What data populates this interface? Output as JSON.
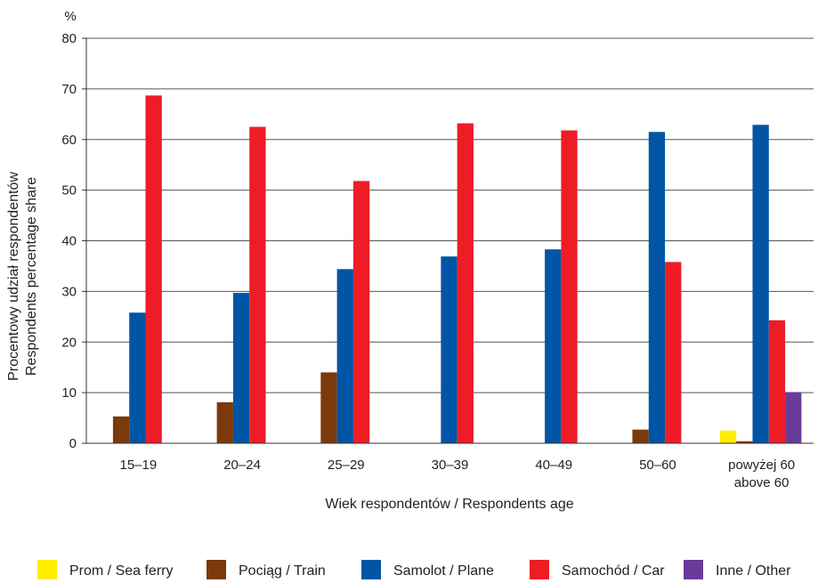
{
  "chart_data": {
    "type": "bar",
    "y_unit": "%",
    "ylabel_lines": [
      "Procentowy udział respondentów",
      "Respondents percentage share"
    ],
    "xlabel": "Wiek respondentów / Respondents age",
    "ylim": [
      0,
      80
    ],
    "yticks": [
      0,
      10,
      20,
      30,
      40,
      50,
      60,
      70,
      80
    ],
    "grid": true,
    "legend_position": "bottom",
    "categories": [
      [
        "15–19"
      ],
      [
        "20–24"
      ],
      [
        "25–29"
      ],
      [
        "30–39"
      ],
      [
        "40–49"
      ],
      [
        "50–60"
      ],
      [
        "powyżej  60",
        "above 60"
      ]
    ],
    "series": [
      {
        "name": "Prom / Sea ferry",
        "color": "#ffed00",
        "values": [
          0,
          0,
          0,
          0,
          0,
          0,
          2.5
        ]
      },
      {
        "name": "Pociąg / Train",
        "color": "#7b3a0c",
        "values": [
          5.3,
          8.1,
          14.0,
          0,
          0,
          2.7,
          0.4
        ]
      },
      {
        "name": "Samolot / Plane",
        "color": "#0055a5",
        "values": [
          25.8,
          29.7,
          34.4,
          36.9,
          38.3,
          61.5,
          62.9
        ]
      },
      {
        "name": "Samochód / Car",
        "color": "#ee1c25",
        "values": [
          68.7,
          62.5,
          51.8,
          63.2,
          61.8,
          35.8,
          24.3
        ]
      },
      {
        "name": "Inne / Other",
        "color": "#6a3b9a",
        "values": [
          0,
          0,
          0,
          0,
          0,
          0,
          10.1
        ]
      }
    ]
  }
}
